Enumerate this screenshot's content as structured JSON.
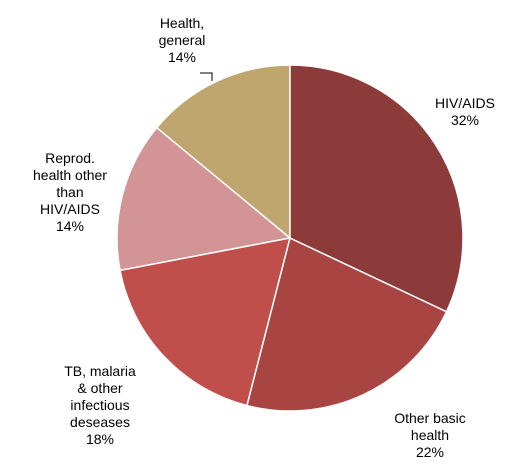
{
  "chart_data": {
    "type": "pie",
    "categories": [
      "HIV/AIDS",
      "Other basic health",
      "TB, malaria & other infectious deseases",
      "Reprod. health other than HIV/AIDS",
      "Health, general"
    ],
    "values": [
      32,
      22,
      18,
      14,
      14
    ],
    "value_labels": [
      "32%",
      "22%",
      "18%",
      "14%",
      "14%"
    ],
    "colors": [
      "#8c3a3a",
      "#a84543",
      "#c04f4c",
      "#d29494",
      "#bfa56e"
    ]
  }
}
